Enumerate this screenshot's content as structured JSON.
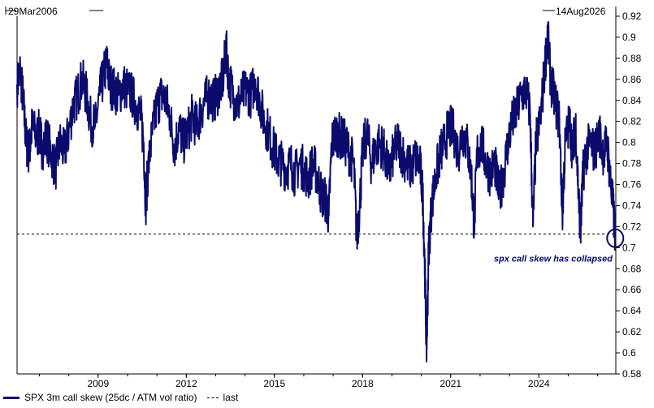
{
  "chart_data": {
    "type": "line",
    "title": "",
    "start_label": "29Mar2006",
    "end_label": "14Aug2026",
    "x_range": [
      2006.24,
      2026.62
    ],
    "ylim": [
      0.58,
      0.92
    ],
    "y_ticks": [
      0.58,
      0.6,
      0.62,
      0.64,
      0.66,
      0.68,
      0.7,
      0.72,
      0.74,
      0.76,
      0.78,
      0.8,
      0.82,
      0.84,
      0.86,
      0.88,
      0.9,
      0.92
    ],
    "x_ticks": [
      "2009",
      "2012",
      "2015",
      "2018",
      "2021",
      "2024"
    ],
    "series": [
      {
        "name": "SPX 3m call skew (25dc / ATM vol ratio)",
        "color": "#0b0b6e",
        "points": [
          [
            2006.24,
            0.855
          ],
          [
            2006.35,
            0.868
          ],
          [
            2006.45,
            0.84
          ],
          [
            2006.55,
            0.8
          ],
          [
            2006.65,
            0.79
          ],
          [
            2006.75,
            0.815
          ],
          [
            2006.9,
            0.805
          ],
          [
            2007.0,
            0.81
          ],
          [
            2007.1,
            0.795
          ],
          [
            2007.25,
            0.805
          ],
          [
            2007.4,
            0.79
          ],
          [
            2007.55,
            0.775
          ],
          [
            2007.7,
            0.8
          ],
          [
            2007.85,
            0.79
          ],
          [
            2008.0,
            0.81
          ],
          [
            2008.15,
            0.835
          ],
          [
            2008.3,
            0.845
          ],
          [
            2008.45,
            0.86
          ],
          [
            2008.6,
            0.845
          ],
          [
            2008.75,
            0.82
          ],
          [
            2008.9,
            0.815
          ],
          [
            2009.05,
            0.845
          ],
          [
            2009.2,
            0.865
          ],
          [
            2009.3,
            0.875
          ],
          [
            2009.4,
            0.855
          ],
          [
            2009.55,
            0.85
          ],
          [
            2009.7,
            0.845
          ],
          [
            2009.85,
            0.855
          ],
          [
            2010.0,
            0.85
          ],
          [
            2010.15,
            0.845
          ],
          [
            2010.3,
            0.835
          ],
          [
            2010.45,
            0.825
          ],
          [
            2010.55,
            0.8
          ],
          [
            2010.62,
            0.74
          ],
          [
            2010.7,
            0.775
          ],
          [
            2010.85,
            0.81
          ],
          [
            2011.0,
            0.835
          ],
          [
            2011.15,
            0.845
          ],
          [
            2011.3,
            0.84
          ],
          [
            2011.45,
            0.825
          ],
          [
            2011.6,
            0.795
          ],
          [
            2011.75,
            0.815
          ],
          [
            2011.9,
            0.8
          ],
          [
            2012.05,
            0.81
          ],
          [
            2012.2,
            0.825
          ],
          [
            2012.35,
            0.815
          ],
          [
            2012.5,
            0.83
          ],
          [
            2012.65,
            0.84
          ],
          [
            2012.8,
            0.845
          ],
          [
            2012.95,
            0.84
          ],
          [
            2013.1,
            0.85
          ],
          [
            2013.25,
            0.86
          ],
          [
            2013.35,
            0.89
          ],
          [
            2013.45,
            0.86
          ],
          [
            2013.6,
            0.845
          ],
          [
            2013.75,
            0.835
          ],
          [
            2013.9,
            0.845
          ],
          [
            2014.05,
            0.85
          ],
          [
            2014.2,
            0.845
          ],
          [
            2014.35,
            0.86
          ],
          [
            2014.5,
            0.84
          ],
          [
            2014.65,
            0.82
          ],
          [
            2014.8,
            0.81
          ],
          [
            2014.95,
            0.795
          ],
          [
            2015.1,
            0.785
          ],
          [
            2015.25,
            0.78
          ],
          [
            2015.4,
            0.775
          ],
          [
            2015.55,
            0.78
          ],
          [
            2015.7,
            0.77
          ],
          [
            2015.85,
            0.78
          ],
          [
            2016.0,
            0.775
          ],
          [
            2016.15,
            0.765
          ],
          [
            2016.3,
            0.78
          ],
          [
            2016.45,
            0.77
          ],
          [
            2016.6,
            0.75
          ],
          [
            2016.75,
            0.745
          ],
          [
            2016.85,
            0.73
          ],
          [
            2016.95,
            0.8
          ],
          [
            2017.1,
            0.81
          ],
          [
            2017.25,
            0.805
          ],
          [
            2017.4,
            0.8
          ],
          [
            2017.55,
            0.79
          ],
          [
            2017.7,
            0.78
          ],
          [
            2017.8,
            0.71
          ],
          [
            2017.9,
            0.74
          ],
          [
            2018.0,
            0.79
          ],
          [
            2018.15,
            0.81
          ],
          [
            2018.3,
            0.78
          ],
          [
            2018.45,
            0.795
          ],
          [
            2018.6,
            0.8
          ],
          [
            2018.75,
            0.79
          ],
          [
            2018.9,
            0.77
          ],
          [
            2019.05,
            0.79
          ],
          [
            2019.2,
            0.8
          ],
          [
            2019.35,
            0.79
          ],
          [
            2019.5,
            0.78
          ],
          [
            2019.65,
            0.775
          ],
          [
            2019.8,
            0.785
          ],
          [
            2019.95,
            0.78
          ],
          [
            2020.05,
            0.75
          ],
          [
            2020.12,
            0.68
          ],
          [
            2020.18,
            0.6
          ],
          [
            2020.25,
            0.7
          ],
          [
            2020.35,
            0.74
          ],
          [
            2020.5,
            0.77
          ],
          [
            2020.65,
            0.79
          ],
          [
            2020.8,
            0.8
          ],
          [
            2020.95,
            0.815
          ],
          [
            2021.1,
            0.81
          ],
          [
            2021.25,
            0.79
          ],
          [
            2021.4,
            0.81
          ],
          [
            2021.55,
            0.8
          ],
          [
            2021.7,
            0.77
          ],
          [
            2021.8,
            0.72
          ],
          [
            2021.9,
            0.79
          ],
          [
            2022.05,
            0.8
          ],
          [
            2022.2,
            0.78
          ],
          [
            2022.35,
            0.77
          ],
          [
            2022.5,
            0.78
          ],
          [
            2022.65,
            0.75
          ],
          [
            2022.8,
            0.77
          ],
          [
            2022.95,
            0.8
          ],
          [
            2023.1,
            0.82
          ],
          [
            2023.25,
            0.83
          ],
          [
            2023.4,
            0.845
          ],
          [
            2023.55,
            0.85
          ],
          [
            2023.7,
            0.83
          ],
          [
            2023.8,
            0.72
          ],
          [
            2023.9,
            0.8
          ],
          [
            2024.05,
            0.82
          ],
          [
            2024.2,
            0.87
          ],
          [
            2024.3,
            0.905
          ],
          [
            2024.4,
            0.86
          ],
          [
            2024.55,
            0.84
          ],
          [
            2024.7,
            0.82
          ],
          [
            2024.8,
            0.73
          ],
          [
            2024.9,
            0.8
          ],
          [
            2025.05,
            0.82
          ],
          [
            2025.15,
            0.79
          ],
          [
            2025.25,
            0.82
          ],
          [
            2025.35,
            0.75
          ],
          [
            2025.42,
            0.715
          ],
          [
            2025.5,
            0.77
          ],
          [
            2025.6,
            0.79
          ],
          [
            2025.75,
            0.8
          ],
          [
            2025.9,
            0.79
          ],
          [
            2026.05,
            0.81
          ],
          [
            2026.2,
            0.79
          ],
          [
            2026.32,
            0.8
          ],
          [
            2026.42,
            0.77
          ],
          [
            2026.52,
            0.74
          ],
          [
            2026.6,
            0.713
          ]
        ]
      },
      {
        "name": "last",
        "color": "#000000",
        "style": "dashed",
        "value": 0.713
      }
    ],
    "annotations": [
      {
        "text": "spx call skew has collapsed",
        "x": 2025.6,
        "y": 0.69
      },
      {
        "shape": "circle",
        "x": 2026.6,
        "y": 0.709
      }
    ],
    "legend": [
      "SPX 3m call skew (25dc / ATM vol ratio)",
      "last"
    ],
    "legend_position": "bottom-left",
    "grid": false
  }
}
